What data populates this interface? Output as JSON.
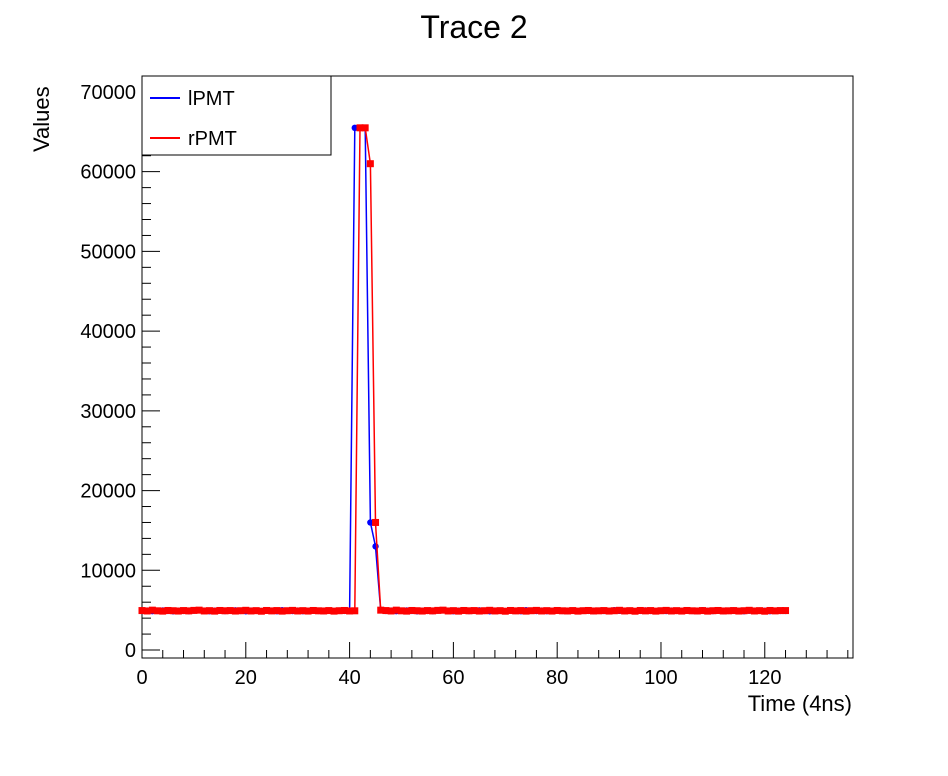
{
  "chart_data": {
    "type": "line",
    "title": "Trace 2",
    "xlabel": "Time (4ns)",
    "ylabel": "Values",
    "xlim": [
      0,
      137
    ],
    "ylim": [
      -1000,
      72000
    ],
    "x_ticks": [
      0,
      20,
      40,
      60,
      80,
      100,
      120
    ],
    "y_ticks": [
      0,
      10000,
      20000,
      30000,
      40000,
      50000,
      60000,
      70000
    ],
    "legend": "top-left",
    "grid": false,
    "series": [
      {
        "name": "lPMT",
        "color": "#0000ff",
        "marker": "circle",
        "x": [
          0,
          1,
          2,
          3,
          4,
          5,
          6,
          7,
          8,
          9,
          10,
          11,
          12,
          13,
          14,
          15,
          16,
          17,
          18,
          19,
          20,
          21,
          22,
          23,
          24,
          25,
          26,
          27,
          28,
          29,
          30,
          31,
          32,
          33,
          34,
          35,
          36,
          37,
          38,
          39,
          40,
          41,
          42,
          43,
          44,
          45,
          46,
          47,
          48,
          49,
          50,
          51,
          52,
          53,
          54,
          55,
          56,
          57,
          58,
          59,
          60,
          61,
          62,
          63,
          64,
          65,
          66,
          67,
          68,
          69,
          70,
          71,
          72,
          73,
          74,
          75,
          76,
          77,
          78,
          79,
          80,
          81,
          82,
          83,
          84,
          85,
          86,
          87,
          88,
          89,
          90,
          91,
          92,
          93,
          94,
          95,
          96,
          97,
          98,
          99,
          100,
          101,
          102,
          103,
          104,
          105,
          106,
          107,
          108,
          109,
          110,
          111,
          112,
          113,
          114,
          115,
          116,
          117,
          118,
          119,
          120,
          121,
          122,
          123,
          124
        ],
        "y": [
          4900,
          4950,
          4880,
          4920,
          4970,
          4900,
          4860,
          4940,
          4910,
          4880,
          4950,
          5000,
          4900,
          4870,
          4930,
          4960,
          4890,
          4920,
          4980,
          4900,
          4860,
          4950,
          4910,
          4880,
          4940,
          4900,
          4870,
          4990,
          4920,
          4890,
          4950,
          4880,
          4910,
          4960,
          4900,
          4870,
          4930,
          4890,
          4950,
          4910,
          4900,
          65500,
          65500,
          65500,
          16000,
          13000,
          5000,
          4900,
          4950,
          4880,
          4920,
          4970,
          4900,
          4860,
          4940,
          4910,
          4880,
          4950,
          5000,
          4900,
          4870,
          4930,
          4960,
          4890,
          4920,
          4980,
          4900,
          4860,
          4950,
          4910,
          4880,
          4940,
          4900,
          4870,
          4990,
          4920,
          4890,
          4950,
          4880,
          4910,
          4960,
          4900,
          4870,
          4930,
          4890,
          4950,
          4910,
          4880,
          4940,
          4900,
          4870,
          4990,
          4920,
          4890,
          4950,
          4880,
          4910,
          4960,
          4900,
          4870,
          4930,
          4890,
          4950,
          4910,
          4880,
          4940,
          4900,
          4870,
          4990,
          4920,
          4890,
          4950,
          4880,
          4910,
          4960,
          4900,
          4870,
          4930,
          4890,
          4950,
          4910,
          4880,
          4940,
          4900,
          4900
        ]
      },
      {
        "name": "rPMT",
        "color": "#ff0000",
        "marker": "square",
        "x": [
          0,
          1,
          2,
          3,
          4,
          5,
          6,
          7,
          8,
          9,
          10,
          11,
          12,
          13,
          14,
          15,
          16,
          17,
          18,
          19,
          20,
          21,
          22,
          23,
          24,
          25,
          26,
          27,
          28,
          29,
          30,
          31,
          32,
          33,
          34,
          35,
          36,
          37,
          38,
          39,
          40,
          41,
          42,
          43,
          44,
          45,
          46,
          47,
          48,
          49,
          50,
          51,
          52,
          53,
          54,
          55,
          56,
          57,
          58,
          59,
          60,
          61,
          62,
          63,
          64,
          65,
          66,
          67,
          68,
          69,
          70,
          71,
          72,
          73,
          74,
          75,
          76,
          77,
          78,
          79,
          80,
          81,
          82,
          83,
          84,
          85,
          86,
          87,
          88,
          89,
          90,
          91,
          92,
          93,
          94,
          95,
          96,
          97,
          98,
          99,
          100,
          101,
          102,
          103,
          104,
          105,
          106,
          107,
          108,
          109,
          110,
          111,
          112,
          113,
          114,
          115,
          116,
          117,
          118,
          119,
          120,
          121,
          122,
          123,
          124
        ],
        "y": [
          4950,
          4900,
          5000,
          4920,
          4880,
          4960,
          4930,
          4890,
          4950,
          4910,
          4970,
          5000,
          4900,
          4940,
          4880,
          4960,
          4920,
          4950,
          4890,
          4930,
          4980,
          4900,
          4940,
          4870,
          4960,
          4910,
          4950,
          4880,
          4930,
          4970,
          4900,
          4940,
          4890,
          4960,
          4920,
          4900,
          4950,
          4880,
          4930,
          4960,
          4900,
          4920,
          65500,
          65500,
          61000,
          16000,
          5000,
          4950,
          4900,
          5000,
          4920,
          4880,
          4960,
          4930,
          4890,
          4950,
          4910,
          4970,
          5000,
          4900,
          4940,
          4880,
          4960,
          4920,
          4950,
          4890,
          4930,
          4980,
          4900,
          4940,
          4870,
          4960,
          4910,
          4950,
          4880,
          4930,
          4970,
          4900,
          4940,
          4890,
          4960,
          4920,
          4900,
          4950,
          4880,
          4930,
          4960,
          4900,
          4920,
          4950,
          4890,
          4930,
          4980,
          4900,
          4940,
          4870,
          4960,
          4910,
          4950,
          4880,
          4930,
          4970,
          4900,
          4940,
          4890,
          4960,
          4920,
          4900,
          4950,
          4880,
          4930,
          4960,
          4900,
          4920,
          4950,
          4890,
          4930,
          4980,
          4900,
          4940,
          4870,
          4960,
          4910,
          4950,
          4950
        ]
      }
    ]
  }
}
